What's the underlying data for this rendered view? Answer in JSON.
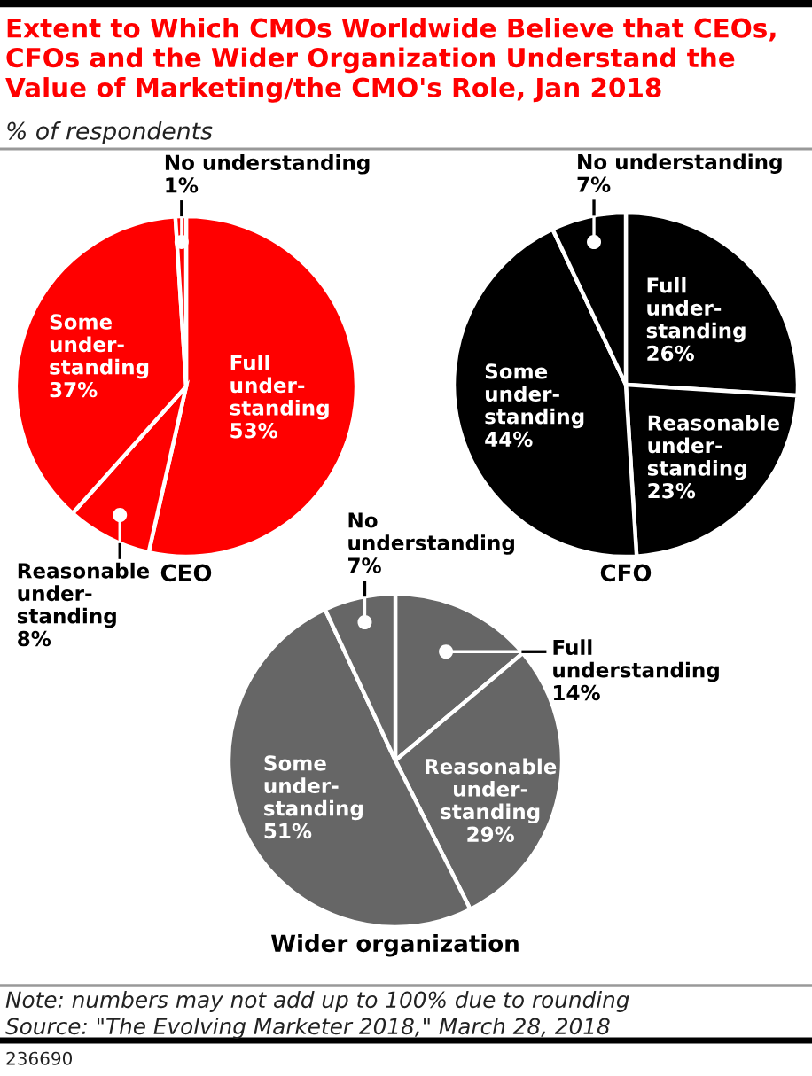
{
  "chart_data": [
    {
      "type": "other",
      "title": "Extent to Which CMOs Worldwide Believe that CEOs,\nCFOs and the Wider Organization Understand the\nValue of Marketing/the CMO's Role, Jan 2018",
      "subtitle": "% of respondents",
      "annotations": [
        "Note: numbers may not add up to 100% due to rounding",
        "Source: \"The Evolving Marketer 2018,\" March 28, 2018",
        "236690"
      ]
    },
    {
      "type": "pie",
      "title": "CEO",
      "categories": [
        "Full\nunder-\nstanding",
        "Reasonable\nunder-\nstanding",
        "Some\nunder-\nstanding",
        "No understanding"
      ],
      "values": [
        53,
        8,
        37,
        1
      ],
      "value_labels": [
        "53%",
        "8%",
        "37%",
        "1%"
      ],
      "colors": [
        "#ff0000",
        "#ff0000",
        "#ff0000",
        "#ff0000"
      ]
    },
    {
      "type": "pie",
      "title": "CFO",
      "categories": [
        "Full\nunder-\nstanding",
        "Reasonable\nunder-\nstanding",
        "Some\nunder-\nstanding",
        "No understanding"
      ],
      "values": [
        26,
        23,
        44,
        7
      ],
      "value_labels": [
        "26%",
        "23%",
        "44%",
        "7%"
      ],
      "colors": [
        "#000000",
        "#000000",
        "#000000",
        "#000000"
      ]
    },
    {
      "type": "pie",
      "title": "Wider organization",
      "categories": [
        "Full\nunderstanding",
        "Reasonable\nunder-\nstanding",
        "Some\nunder-\nstanding",
        "No\nunderstanding"
      ],
      "values": [
        14,
        29,
        51,
        7
      ],
      "value_labels": [
        "14%",
        "29%",
        "51%",
        "7%"
      ],
      "colors": [
        "#666666",
        "#666666",
        "#666666",
        "#666666"
      ]
    }
  ]
}
